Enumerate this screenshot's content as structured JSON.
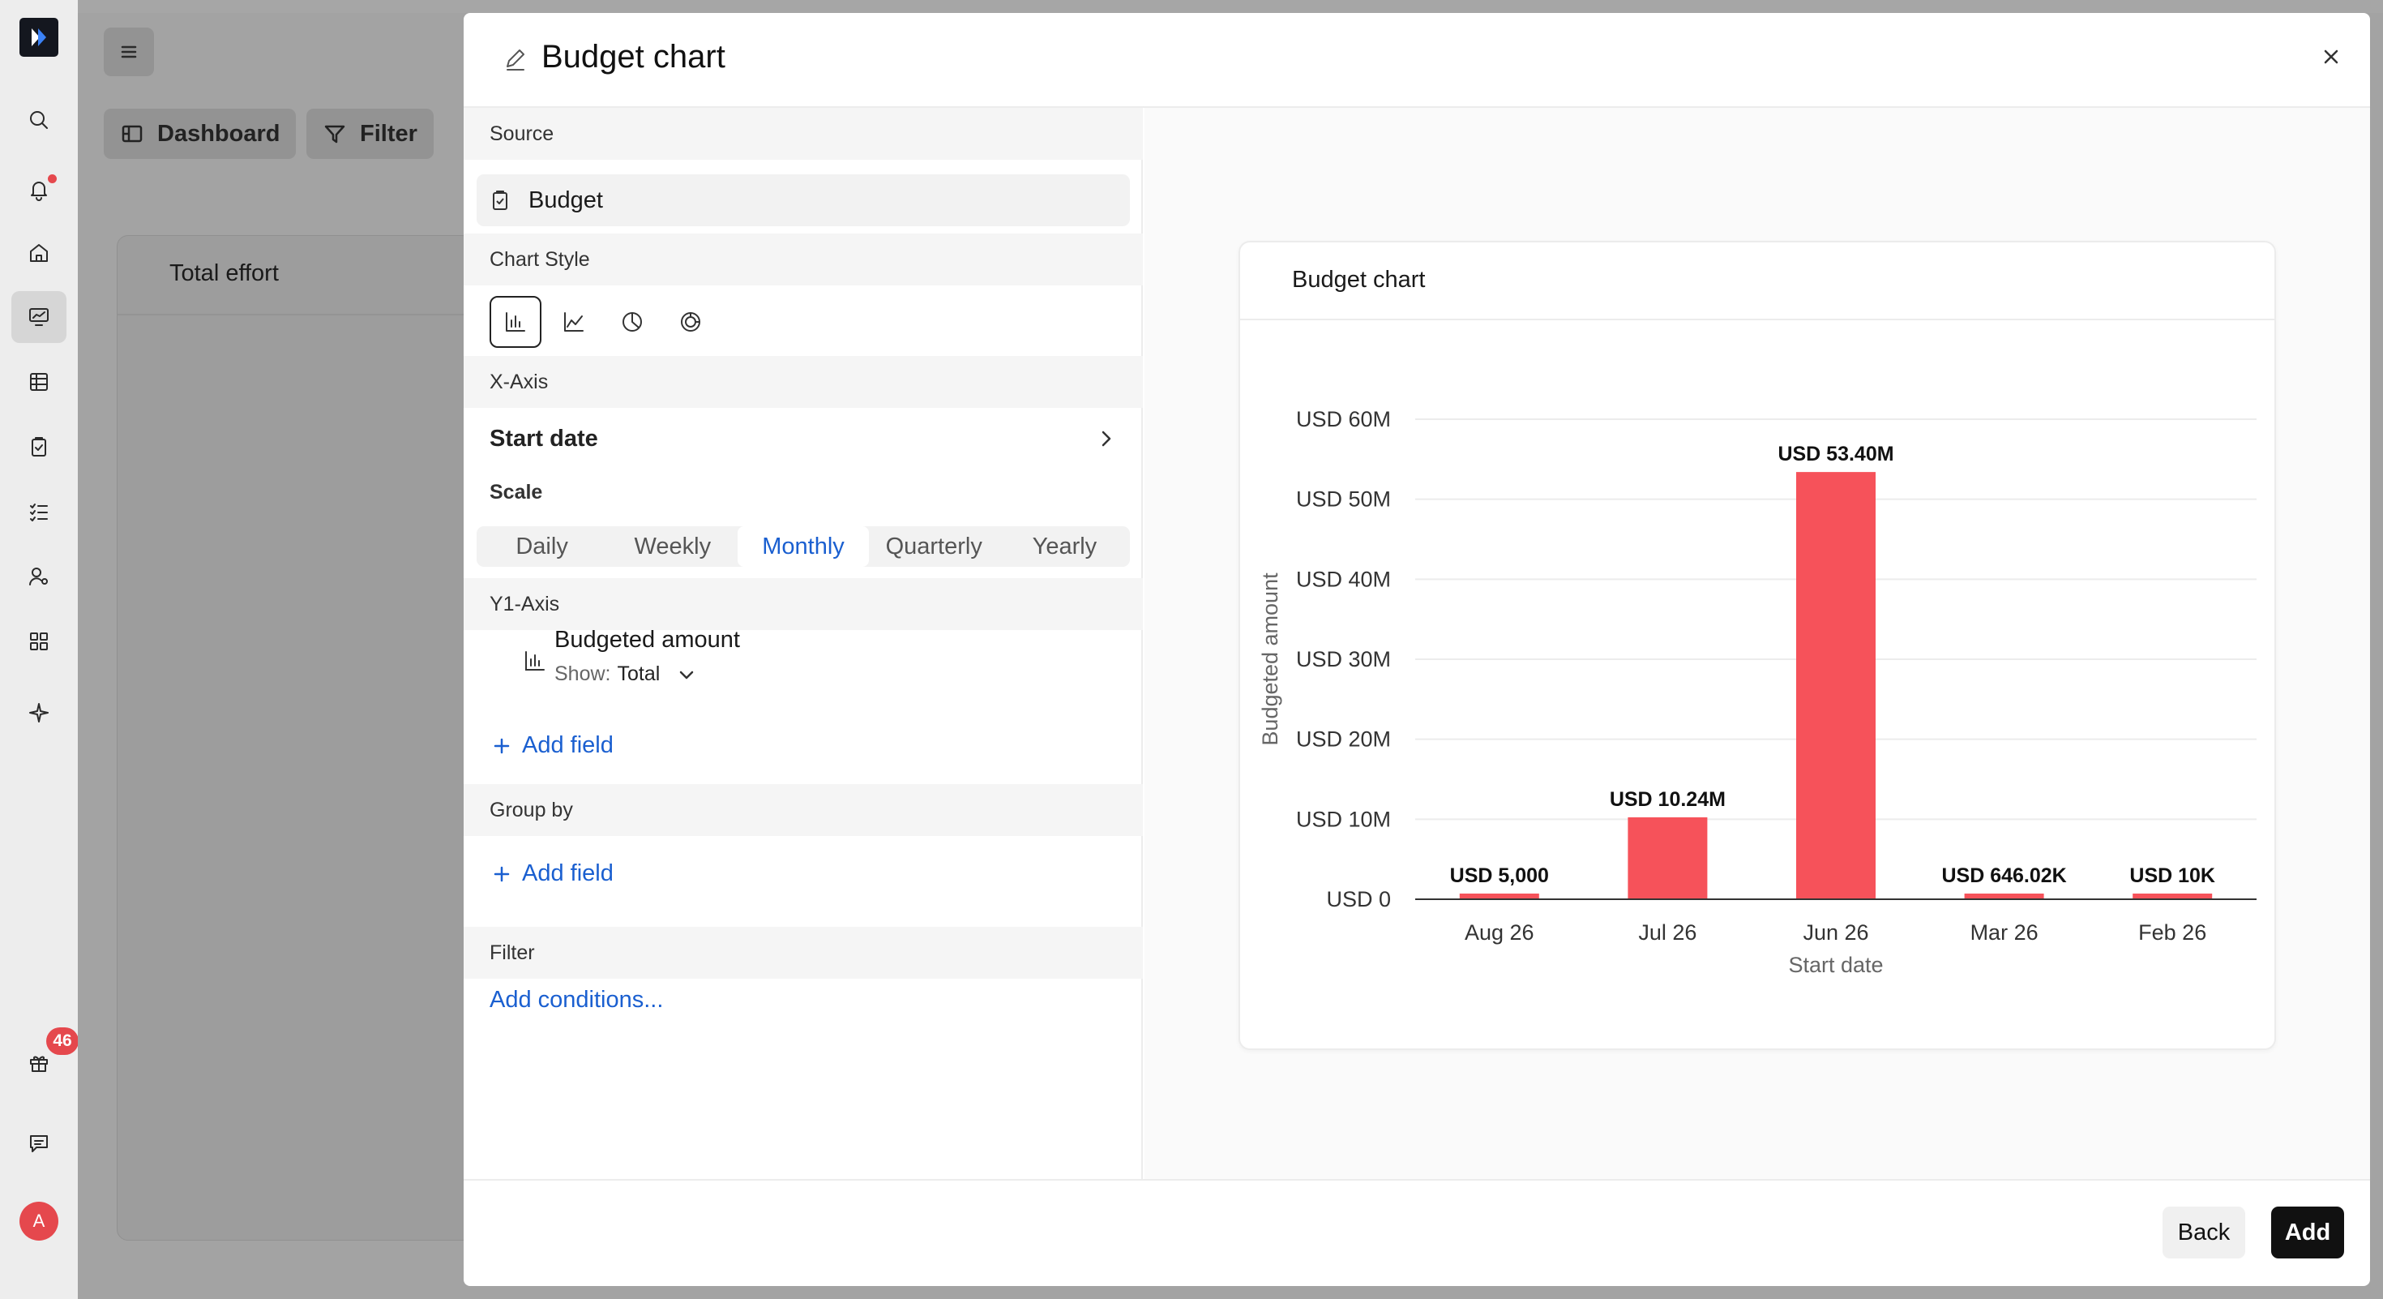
{
  "page": {
    "toolbar": {
      "dashboard_label": "Dashboard",
      "filter_label": "Filter"
    },
    "card": {
      "title": "Total effort"
    },
    "sidebar": {
      "notification_count": "46",
      "avatar_initial": "A"
    }
  },
  "modal": {
    "title": "Budget chart",
    "sections": {
      "source": "Source",
      "chart_style": "Chart Style",
      "x_axis": "X-Axis",
      "scale": "Scale",
      "y1_axis": "Y1-Axis",
      "group_by": "Group by",
      "filter": "Filter"
    },
    "source_value": "Budget",
    "chart_style_options": [
      "bar-chart-icon",
      "line-chart-icon",
      "pie-chart-icon",
      "donut-chart-icon"
    ],
    "chart_style_selected": "bar-chart-icon",
    "x_axis_field": "Start date",
    "scale_options": [
      "Daily",
      "Weekly",
      "Monthly",
      "Quarterly",
      "Yearly"
    ],
    "scale_selected": "Monthly",
    "y1_field": {
      "name": "Budgeted amount",
      "show_label": "Show:",
      "show_value": "Total"
    },
    "add_field_label": "Add field",
    "add_conditions_label": "Add conditions...",
    "back_label": "Back",
    "add_label": "Add"
  },
  "chart_data": {
    "type": "bar",
    "title": "Budget chart",
    "xlabel": "Start date",
    "ylabel": "Budgeted amount",
    "categories": [
      "Aug 26",
      "Jul 26",
      "Jun 26",
      "Mar 26",
      "Feb 26"
    ],
    "values": [
      5000,
      10240000,
      53400000,
      646020,
      10000
    ],
    "data_labels": [
      "USD 5,000",
      "USD 10.24M",
      "USD 53.40M",
      "USD 646.02K",
      "USD 10K"
    ],
    "y_ticks": [
      0,
      10000000,
      20000000,
      30000000,
      40000000,
      50000000,
      60000000
    ],
    "y_tick_labels": [
      "USD 0",
      "USD 10M",
      "USD 20M",
      "USD 30M",
      "USD 40M",
      "USD 50M",
      "USD 60M"
    ],
    "ylim": [
      0,
      60000000
    ],
    "grid": true,
    "bar_color": "#f6525a"
  }
}
